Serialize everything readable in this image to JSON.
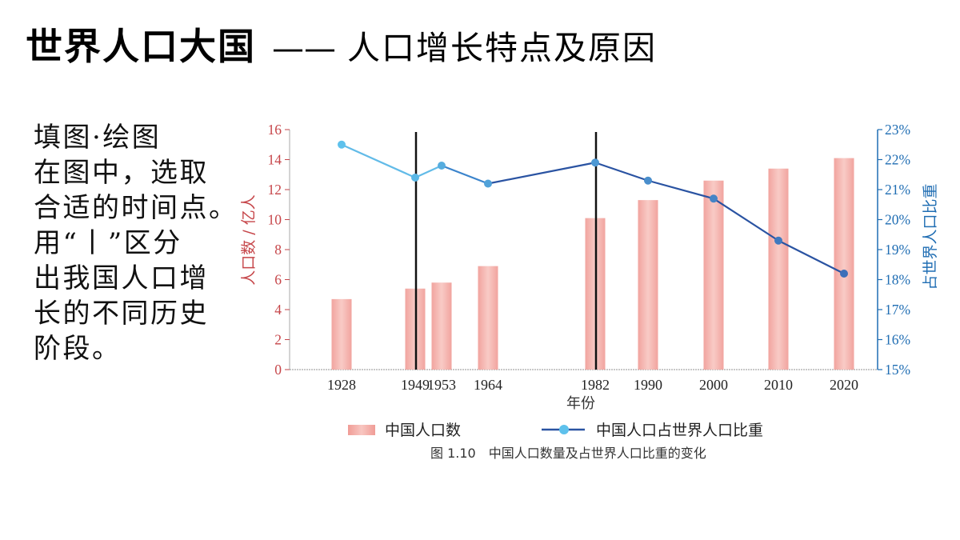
{
  "slide": {
    "title": {
      "main": "世界人口大国",
      "separator": "——",
      "sub": "人口增长特点及原因"
    },
    "instructions": {
      "heading": "填图·绘图",
      "lines": [
        "在图中，选取",
        "合适的时间点。",
        "用“丨”区分",
        "出我国人口增",
        "长的不同历史",
        "阶段。"
      ]
    }
  },
  "chart_data": {
    "type": "bar",
    "categories": [
      "1928",
      "1949",
      "1953",
      "1964",
      "1982",
      "1990",
      "2000",
      "2010",
      "2020"
    ],
    "series": [
      {
        "name": "中国人口数",
        "type": "bar",
        "axis": "left",
        "values": [
          4.7,
          5.4,
          5.8,
          6.9,
          10.1,
          11.3,
          12.6,
          13.4,
          14.1
        ]
      },
      {
        "name": "中国人口占世界人口比重",
        "type": "line",
        "axis": "right",
        "values": [
          22.5,
          21.4,
          21.8,
          21.2,
          21.9,
          21.3,
          20.7,
          19.3,
          18.2
        ]
      }
    ],
    "xlabel": "年份",
    "ylabel": "人口数 / 亿人",
    "ylabel_right": "占世界人口比重",
    "ylim": [
      0,
      16
    ],
    "yticks": [
      "0",
      "2",
      "4",
      "6",
      "8",
      "10",
      "12",
      "14",
      "16"
    ],
    "ylim_right": [
      15,
      23
    ],
    "yticks_right": [
      "15%",
      "16%",
      "17%",
      "18%",
      "19%",
      "20%",
      "21%",
      "22%",
      "23%"
    ],
    "dividers": [
      "1949",
      "1982"
    ],
    "caption": "图 1.10　中国人口数量及占世界人口比重的变化",
    "legend": "bottom",
    "grid": false,
    "colors": {
      "bar_edge": "#f09c96",
      "bar_center": "#f8c6c1",
      "left_axis": "#c6464a",
      "right_axis": "#1f6db3",
      "axis_gray": "#a8a8a8",
      "divider": "#111111",
      "line_light": "#62bbe8",
      "line_mid": "#3b84cc",
      "line_dark": "#2a53a2",
      "marker_light": "#5ec1ec",
      "marker_dark": "#3c6fb9"
    }
  }
}
